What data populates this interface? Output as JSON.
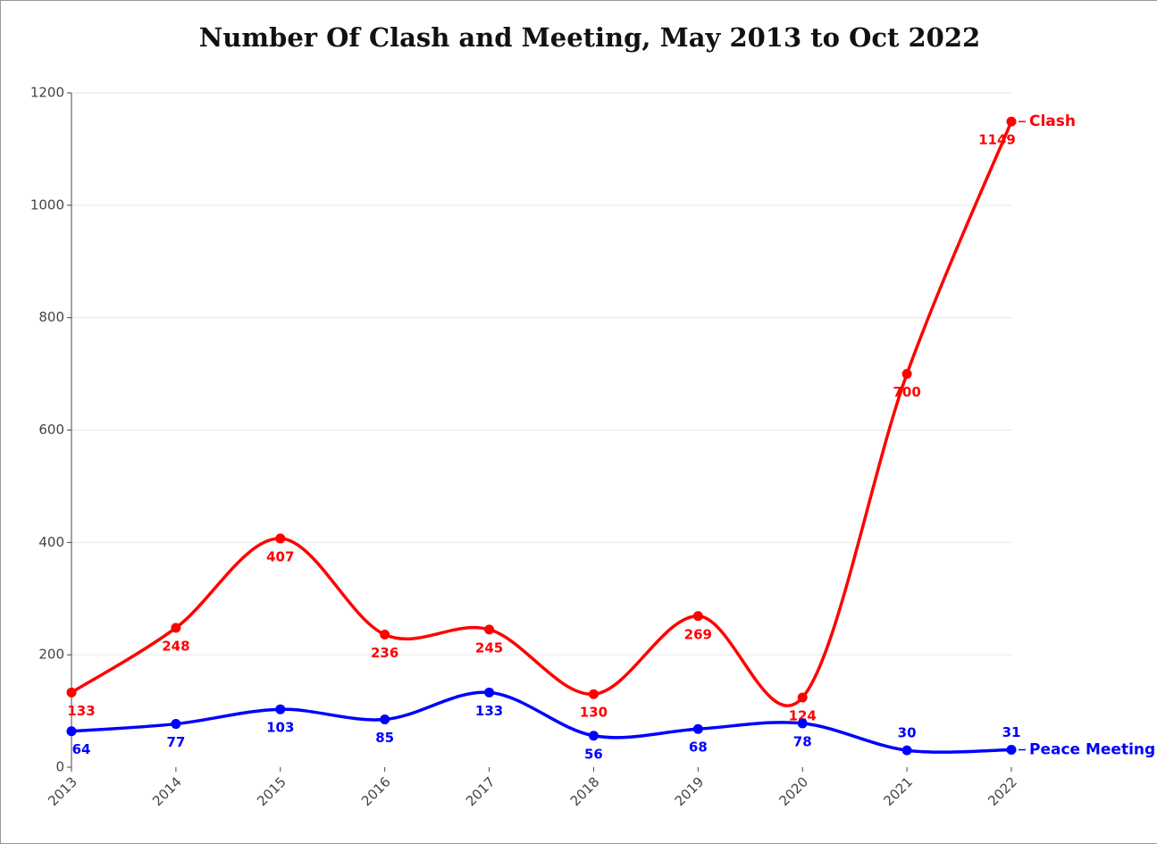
{
  "chart_data": {
    "type": "line",
    "title": "Number Of Clash and Meeting, May 2013 to Oct 2022",
    "categories": [
      "2013",
      "2014",
      "2015",
      "2016",
      "2017",
      "2018",
      "2019",
      "2020",
      "2021",
      "2022"
    ],
    "series": [
      {
        "name": "Clash",
        "color": "#ff0000",
        "values": [
          133,
          248,
          407,
          236,
          245,
          130,
          269,
          124,
          700,
          1149
        ]
      },
      {
        "name": "Peace Meeting",
        "color": "#0000ff",
        "values": [
          64,
          77,
          103,
          85,
          133,
          56,
          68,
          78,
          30,
          31
        ]
      }
    ],
    "ylim": [
      0,
      1200
    ],
    "yticks": [
      0,
      200,
      400,
      600,
      800,
      1000,
      1200
    ],
    "grid": true
  }
}
